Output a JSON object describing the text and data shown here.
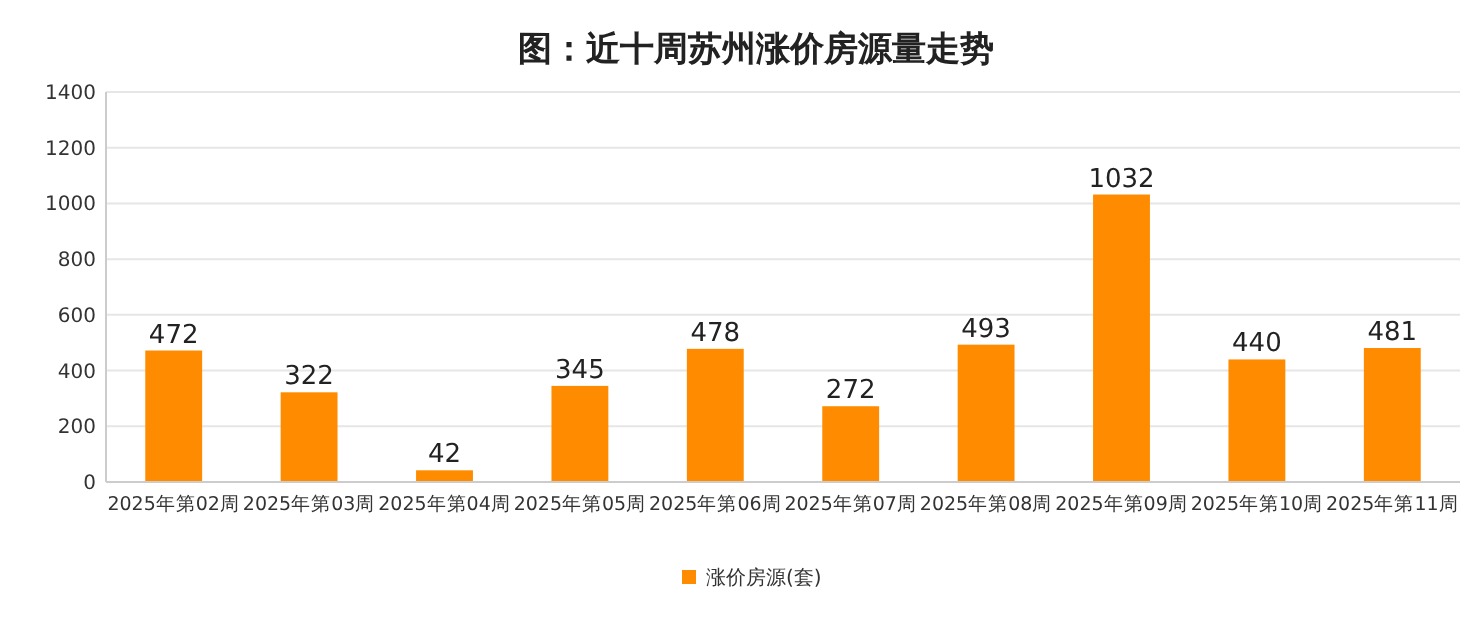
{
  "chart_data": {
    "type": "bar",
    "title": "图：近十周苏州涨价房源量走势",
    "categories": [
      "2025年第02周",
      "2025年第03周",
      "2025年第04周",
      "2025年第05周",
      "2025年第06周",
      "2025年第07周",
      "2025年第08周",
      "2025年第09周",
      "2025年第10周",
      "2025年第11周"
    ],
    "series": [
      {
        "name": "涨价房源(套)",
        "color": "#ff8c00",
        "values": [
          472,
          322,
          42,
          345,
          478,
          272,
          493,
          1032,
          440,
          481
        ]
      }
    ],
    "ylim": [
      0,
      1400
    ],
    "yticks": [
      0,
      200,
      400,
      600,
      800,
      1000,
      1200,
      1400
    ],
    "grid": "y",
    "legend": "bottom",
    "data_labels": true
  }
}
